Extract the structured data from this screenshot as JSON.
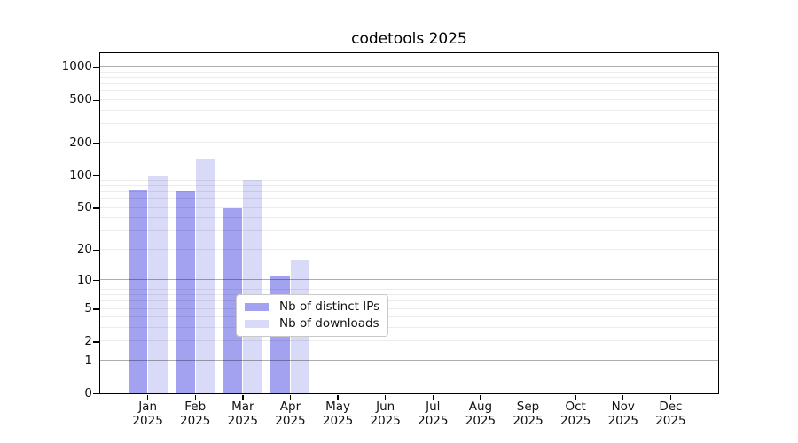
{
  "page": {
    "background": "#ffffff"
  },
  "chart_data": {
    "type": "bar",
    "title": "codetools 2025",
    "months": [
      "Jan",
      "Feb",
      "Mar",
      "Apr",
      "May",
      "Jun",
      "Jul",
      "Aug",
      "Sep",
      "Oct",
      "Nov",
      "Dec"
    ],
    "year": "2025",
    "categories": [
      "Jan 2025",
      "Feb 2025",
      "Mar 2025",
      "Apr 2025",
      "May 2025",
      "Jun 2025",
      "Jul 2025",
      "Aug 2025",
      "Sep 2025",
      "Oct 2025",
      "Nov 2025",
      "Dec 2025"
    ],
    "series": [
      {
        "name": "Nb of distinct IPs",
        "color": "#a2a2f0",
        "values": [
          72,
          71,
          50,
          11,
          0,
          0,
          0,
          0,
          0,
          0,
          0,
          0
        ]
      },
      {
        "name": "Nb of downloads",
        "color": "#d9d9f8",
        "values": [
          98,
          143,
          91,
          16,
          0,
          0,
          0,
          0,
          0,
          0,
          0,
          0
        ]
      }
    ],
    "yticks": [
      0,
      1,
      2,
      5,
      10,
      20,
      50,
      100,
      200,
      500,
      1000
    ],
    "major_gridlines": [
      1,
      10,
      100,
      1000
    ],
    "minor_gridlines": [
      2,
      3,
      4,
      5,
      6,
      7,
      8,
      9,
      20,
      30,
      40,
      50,
      60,
      70,
      80,
      90,
      200,
      300,
      400,
      500,
      600,
      700,
      800,
      900
    ],
    "scale": "log10(1 + value)",
    "ylim": [
      0,
      1350
    ],
    "xlabel": "",
    "ylabel": "",
    "grid": true,
    "legend_position": "inside-bottom-center"
  },
  "colors": {
    "bar_distinct_ips": "#a2a2f0",
    "bar_downloads": "#d9d9f8",
    "grid_major": "#b3b3b3",
    "grid_minor": "#ececec",
    "axis": "#000000",
    "text": "#111111"
  }
}
